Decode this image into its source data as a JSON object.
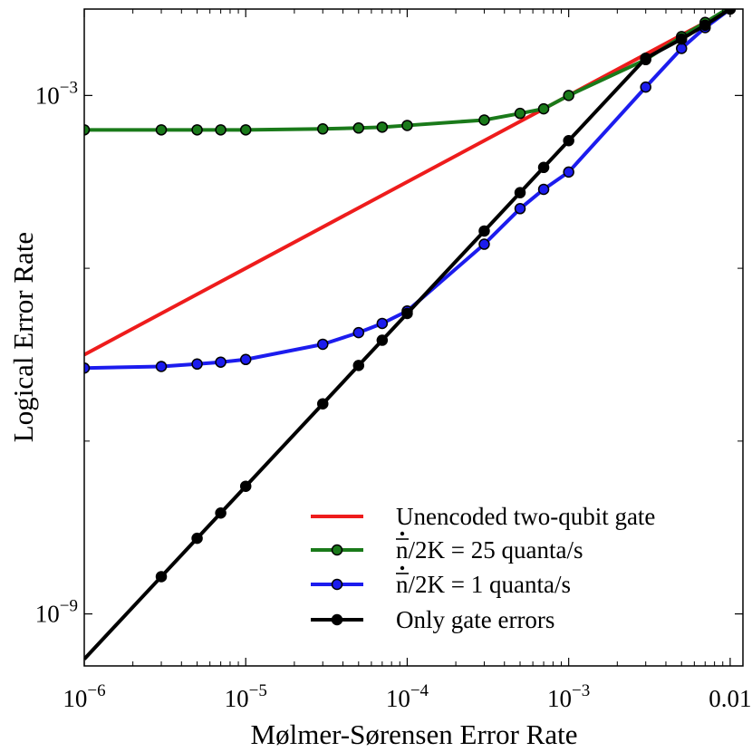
{
  "chart_data": {
    "type": "line",
    "xlabel": "Mølmer-Sørensen Error Rate",
    "ylabel": "Logical Error Rate",
    "x_scale": "log",
    "y_scale": "log",
    "xlim": [
      1e-06,
      0.012
    ],
    "ylim": [
      2.5e-10,
      0.01
    ],
    "grid": false,
    "legend_position": "lower-right",
    "x_ticks": [
      {
        "value": 1e-06,
        "label": "10",
        "exp": "−6"
      },
      {
        "value": 1e-05,
        "label": "10",
        "exp": "−5"
      },
      {
        "value": 0.0001,
        "label": "10",
        "exp": "−4"
      },
      {
        "value": 0.001,
        "label": "10",
        "exp": "−3"
      },
      {
        "value": 0.01,
        "label": "0.01",
        "exp": ""
      }
    ],
    "y_ticks": [
      {
        "value": 0.001,
        "label": "10",
        "exp": "−3"
      },
      {
        "value": 1e-09,
        "label": "10",
        "exp": "−9"
      }
    ],
    "y_minor_ticks": [
      1e-05,
      1e-07
    ],
    "series": [
      {
        "name": "Unencoded two-qubit gate",
        "color": "#ee1c1c",
        "markers": false,
        "x": [
          1e-06,
          0.011
        ],
        "y": [
          1e-06,
          0.011
        ]
      },
      {
        "name": "n/2K = 25 quanta/s",
        "name_parts": [
          "n",
          "/2K = 25 quanta/s"
        ],
        "color": "#1a7a1a",
        "markers": true,
        "x": [
          1e-06,
          3e-06,
          5e-06,
          7e-06,
          1e-05,
          3e-05,
          5e-05,
          7e-05,
          0.0001,
          0.0003,
          0.0005,
          0.0007,
          0.001,
          0.003,
          0.005,
          0.007,
          0.01
        ],
        "y": [
          0.0004,
          0.0004,
          0.0004,
          0.0004,
          0.0004,
          0.00041,
          0.00042,
          0.00043,
          0.00045,
          0.00052,
          0.00062,
          0.0007,
          0.001,
          0.0026,
          0.0048,
          0.007,
          0.0105
        ]
      },
      {
        "name": "n/2K = 1 quanta/s",
        "name_parts": [
          "n",
          "/2K = 1 quanta/s"
        ],
        "color": "#1c1cee",
        "markers": true,
        "x": [
          1e-06,
          3e-06,
          5e-06,
          7e-06,
          1e-05,
          3e-05,
          5e-05,
          7e-05,
          0.0001,
          0.0003,
          0.0005,
          0.0007,
          0.001,
          0.003,
          0.005,
          0.007,
          0.01
        ],
        "y": [
          7e-07,
          7.3e-07,
          7.8e-07,
          8.2e-07,
          8.8e-07,
          1.32e-06,
          1.8e-06,
          2.3e-06,
          3.2e-06,
          1.9e-05,
          4.9e-05,
          8.2e-05,
          0.00013,
          0.00125,
          0.0035,
          0.0061,
          0.01
        ]
      },
      {
        "name": "Only gate errors",
        "color": "#000000",
        "markers": true,
        "markers_from_index": 1,
        "x": [
          1e-06,
          3e-06,
          5e-06,
          7e-06,
          1e-05,
          3e-05,
          5e-05,
          7e-05,
          0.0001,
          0.0003,
          0.0005,
          0.0007,
          0.001,
          0.003,
          0.005,
          0.007,
          0.01
        ],
        "y": [
          3e-10,
          2.7e-09,
          7.5e-09,
          1.47e-08,
          3e-08,
          2.7e-07,
          7.5e-07,
          1.47e-06,
          3e-06,
          2.7e-05,
          7.5e-05,
          0.000147,
          0.0003,
          0.0027,
          0.0045,
          0.0065,
          0.01
        ]
      }
    ]
  }
}
